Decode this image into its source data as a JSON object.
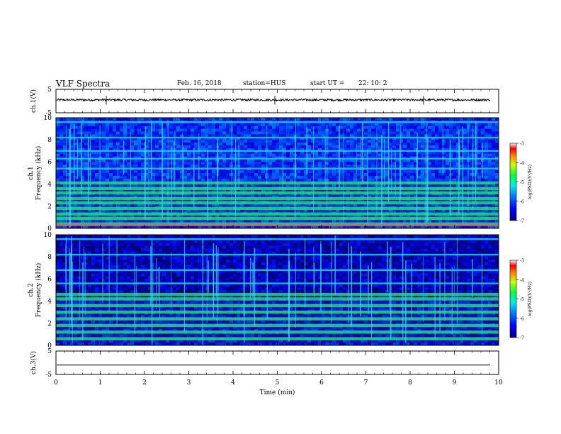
{
  "header": {
    "title": "VLF Spectra",
    "date": "Feb. 16, 2018",
    "station": "station=HUS",
    "start_label": "start  UT =",
    "start_time": "22: 10: 2"
  },
  "chart_data": [
    {
      "type": "line",
      "panel": "ch1-waveform",
      "ylabel": "ch.1(V)",
      "ylim": [
        -5,
        5
      ],
      "yticks": [
        "5",
        "-5"
      ],
      "xlim": [
        0,
        10
      ],
      "description_level": 0.5
    },
    {
      "type": "heatmap",
      "panel": "ch1-spectrogram",
      "ylabel_line1": "ch.1",
      "ylabel_line2": "Frequency (kHz)",
      "ylim": [
        0,
        10
      ],
      "yticks": [
        "0",
        "2",
        "4",
        "6",
        "8",
        "10"
      ],
      "xlim": [
        0,
        10
      ],
      "bands_khz": [
        0.4,
        0.9,
        1.3,
        1.8,
        2.3,
        2.7,
        3.2,
        3.6,
        4.1,
        5.4,
        6.3,
        7.0,
        8.2,
        9.6
      ],
      "colorbar": {
        "label": "log(PSD)(V²/Hz)",
        "ticks": [
          "-3",
          "-4",
          "-5",
          "-6",
          "-7"
        ],
        "range": [
          -7,
          -3
        ]
      }
    },
    {
      "type": "heatmap",
      "panel": "ch2-spectrogram",
      "ylabel_line1": "ch.2",
      "ylabel_line2": "Frequency (kHz)",
      "ylim": [
        0,
        10
      ],
      "yticks": [
        "0",
        "2",
        "4",
        "6",
        "8",
        "10"
      ],
      "xlim": [
        0,
        10
      ],
      "bands_khz": [
        0.6,
        1.2,
        1.8,
        2.4,
        3.0,
        3.6,
        4.2,
        4.6,
        5.6,
        6.8,
        8.2,
        9.6
      ],
      "colorbar": {
        "label": "log(PSD)(V²/Hz)",
        "ticks": [
          "-3",
          "-4",
          "-5",
          "-6",
          "-7"
        ],
        "range": [
          -7,
          -3
        ]
      }
    },
    {
      "type": "line",
      "panel": "ch3-waveform",
      "ylabel": "ch.3(V)",
      "ylim": [
        -5,
        5
      ],
      "yticks": [
        "5",
        "-5"
      ],
      "xlim": [
        0,
        10
      ],
      "xlabel": "Time (min)",
      "xticks": [
        "0",
        "1",
        "2",
        "3",
        "4",
        "5",
        "6",
        "7",
        "8",
        "9",
        "10"
      ],
      "level": -1.0
    }
  ]
}
